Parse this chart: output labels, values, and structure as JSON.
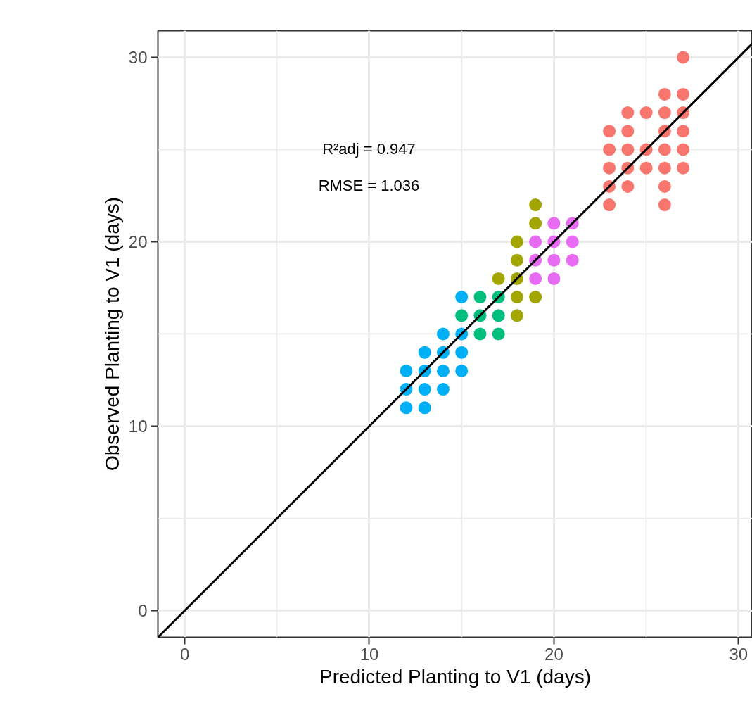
{
  "chart_data": {
    "type": "scatter",
    "xlabel": "Predicted Planting to V1 (days)",
    "ylabel": "Observed Planting to V1 (days)",
    "xlim": [
      -1.45,
      30.75
    ],
    "ylim": [
      -1.45,
      31.45
    ],
    "xticks": [
      0,
      {
        "value": 5,
        "label": null
      },
      10,
      {
        "value": 15,
        "label": null
      },
      20,
      {
        "value": 25,
        "label": null
      },
      30
    ],
    "yticks": [
      0,
      {
        "value": 5,
        "label": null
      },
      10,
      {
        "value": 15,
        "label": null
      },
      20,
      {
        "value": 25,
        "label": null
      },
      30
    ],
    "grid": true,
    "marker": "circle",
    "annotations": [
      "R²adj = 0.947",
      "RMSE = 1.036"
    ],
    "series": [
      {
        "color": "#00b0f6",
        "x": [
          12,
          12,
          12,
          13,
          13,
          13,
          13,
          14,
          14,
          14,
          14,
          15,
          15,
          15,
          15
        ],
        "values": [
          13,
          12,
          11,
          14,
          13,
          12,
          11,
          15,
          14,
          13,
          12,
          17,
          15,
          14,
          13
        ]
      },
      {
        "color": "#00bf7d",
        "x": [
          15,
          16,
          16,
          16,
          17,
          17,
          17
        ],
        "values": [
          16,
          17,
          16,
          15,
          17,
          16,
          15
        ]
      },
      {
        "color": "#a3a500",
        "x": [
          17,
          18,
          18,
          18,
          18,
          18,
          19,
          19,
          19
        ],
        "values": [
          18,
          20,
          19,
          18,
          17,
          16,
          22,
          21,
          17
        ]
      },
      {
        "color": "#e76bf3",
        "x": [
          19,
          19,
          19,
          20,
          20,
          20,
          20,
          21,
          21,
          21
        ],
        "values": [
          20,
          19,
          18,
          21,
          20,
          19,
          18,
          21,
          20,
          19
        ]
      },
      {
        "color": "#f8766d",
        "x": [
          23,
          23,
          23,
          23,
          23,
          24,
          24,
          24,
          24,
          24,
          25,
          25,
          25,
          26,
          26,
          26,
          26,
          26,
          26,
          26,
          27,
          27,
          27,
          27,
          27,
          27
        ],
        "values": [
          26,
          25,
          24,
          23,
          22,
          27,
          26,
          25,
          24,
          23,
          27,
          25,
          24,
          28,
          27,
          26,
          25,
          24,
          23,
          22,
          30,
          28,
          27,
          26,
          25,
          24
        ]
      },
      {
        "type": "line",
        "color": "#000000",
        "marker": "none",
        "x": [
          -1.45,
          30.75
        ],
        "values": [
          -1.45,
          30.75
        ]
      }
    ]
  }
}
